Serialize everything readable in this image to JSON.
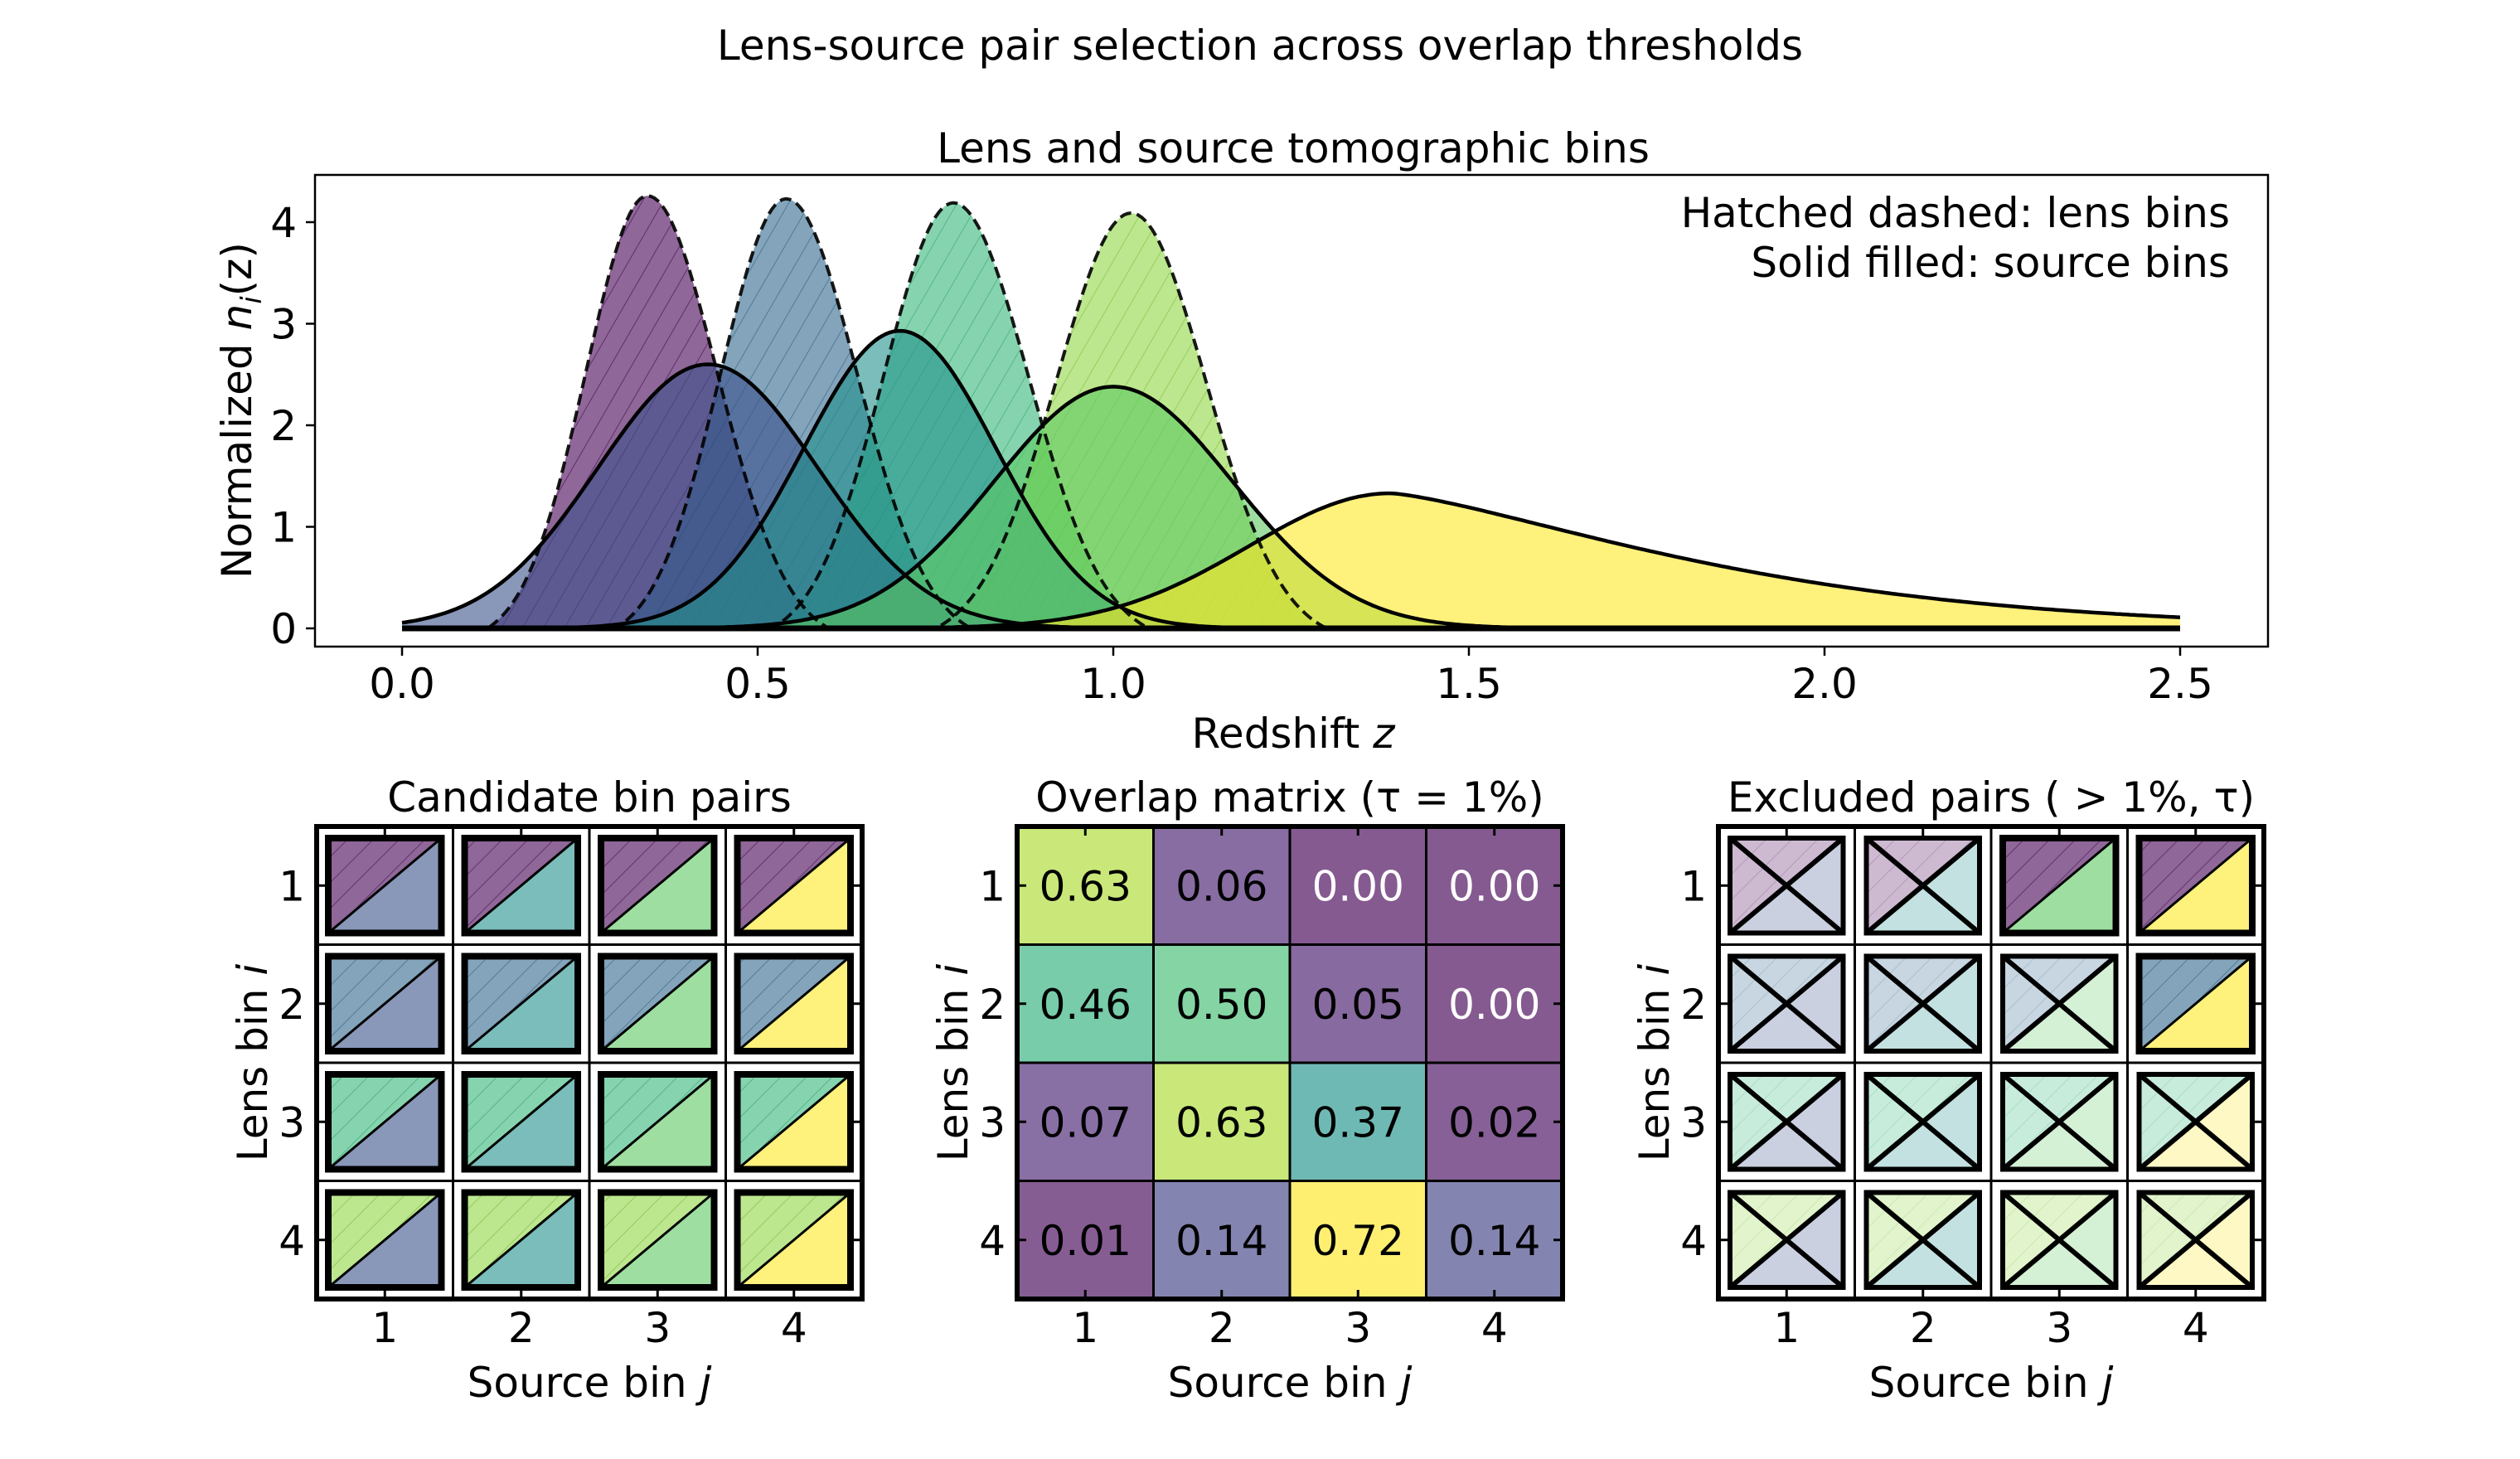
{
  "figure": {
    "suptitle": "Lens-source pair selection across overlap thresholds"
  },
  "chart_data": [
    {
      "id": "nz",
      "type": "area",
      "title": "Lens and source tomographic bins",
      "xlabel": "Redshift z",
      "ylabel": "Normalized n_i(z)",
      "xlim": [
        -0.12,
        2.62
      ],
      "ylim": [
        -0.2,
        4.45
      ],
      "xticks": [
        "0.0",
        "0.5",
        "1.0",
        "1.5",
        "2.0",
        "2.5"
      ],
      "yticks": [
        "0",
        "1",
        "2",
        "3",
        "4"
      ],
      "annotation": [
        "Hatched dashed: lens bins",
        "Solid filled: source bins"
      ],
      "annotation_position": "top-right",
      "lens_bins": [
        {
          "name": "Lens bin 1",
          "peak_z": 0.345,
          "peak": 4.26,
          "zmin": 0.12,
          "zmax": 0.6,
          "color": "#440154",
          "style": "hatched-dashed"
        },
        {
          "name": "Lens bin 2",
          "peak_z": 0.54,
          "peak": 4.23,
          "zmin": 0.3,
          "zmax": 0.8,
          "color": "#31688e",
          "style": "hatched-dashed"
        },
        {
          "name": "Lens bin 3",
          "peak_z": 0.775,
          "peak": 4.19,
          "zmin": 0.52,
          "zmax": 1.05,
          "color": "#35b779",
          "style": "hatched-dashed"
        },
        {
          "name": "Lens bin 4",
          "peak_z": 1.025,
          "peak": 4.09,
          "zmin": 0.75,
          "zmax": 1.3,
          "color": "#90d743",
          "style": "hatched-dashed"
        }
      ],
      "source_bins": [
        {
          "name": "Source bin 1",
          "peak_z": 0.43,
          "peak": 2.6,
          "color": "#3b528b",
          "style": "solid"
        },
        {
          "name": "Source bin 2",
          "peak_z": 0.7,
          "peak": 2.93,
          "color": "#21918c",
          "style": "solid"
        },
        {
          "name": "Source bin 3",
          "peak_z": 1.0,
          "peak": 2.38,
          "color": "#5ec962",
          "style": "solid"
        },
        {
          "name": "Source bin 4",
          "peak_z": 1.39,
          "peak": 1.33,
          "value_at_2.5": 0.08,
          "color": "#fde725",
          "style": "solid"
        }
      ]
    },
    {
      "id": "candidates",
      "type": "table",
      "title": "Candidate bin pairs",
      "xlabel": "Source bin j",
      "ylabel": "Lens bin i",
      "xticks": [
        "1",
        "2",
        "3",
        "4"
      ],
      "yticks": [
        "1",
        "2",
        "3",
        "4"
      ],
      "lens_colors": [
        "#440154",
        "#31688e",
        "#35b779",
        "#90d743"
      ],
      "source_colors": [
        "#3b528b",
        "#21918c",
        "#5ec962",
        "#fde725"
      ],
      "excluded": [
        [
          false,
          false,
          false,
          false
        ],
        [
          false,
          false,
          false,
          false
        ],
        [
          false,
          false,
          false,
          false
        ],
        [
          false,
          false,
          false,
          false
        ]
      ]
    },
    {
      "id": "overlap",
      "type": "heatmap",
      "title": "Overlap matrix (τ = 1%)",
      "xlabel": "Source bin j",
      "ylabel": "Lens bin i",
      "xticks": [
        "1",
        "2",
        "3",
        "4"
      ],
      "yticks": [
        "1",
        "2",
        "3",
        "4"
      ],
      "colormap": "viridis",
      "vmin": 0.0,
      "vmax": 0.72,
      "values": [
        [
          0.63,
          0.06,
          0.0,
          0.0
        ],
        [
          0.46,
          0.5,
          0.05,
          0.0
        ],
        [
          0.07,
          0.63,
          0.37,
          0.02
        ],
        [
          0.01,
          0.14,
          0.72,
          0.14
        ]
      ],
      "labels": [
        [
          "0.63",
          "0.06",
          "0.00",
          "0.00"
        ],
        [
          "0.46",
          "0.50",
          "0.05",
          "0.00"
        ],
        [
          "0.07",
          "0.63",
          "0.37",
          "0.02"
        ],
        [
          "0.01",
          "0.14",
          "0.72",
          "0.14"
        ]
      ]
    },
    {
      "id": "excluded",
      "type": "table",
      "title": "Excluded pairs ( > 1%, τ)",
      "xlabel": "Source bin j",
      "ylabel": "Lens bin i",
      "xticks": [
        "1",
        "2",
        "3",
        "4"
      ],
      "yticks": [
        "1",
        "2",
        "3",
        "4"
      ],
      "lens_colors": [
        "#440154",
        "#31688e",
        "#35b779",
        "#90d743"
      ],
      "source_colors": [
        "#3b528b",
        "#21918c",
        "#5ec962",
        "#fde725"
      ],
      "excluded": [
        [
          true,
          true,
          false,
          false
        ],
        [
          true,
          true,
          true,
          false
        ],
        [
          true,
          true,
          true,
          true
        ],
        [
          true,
          true,
          true,
          true
        ]
      ]
    }
  ]
}
